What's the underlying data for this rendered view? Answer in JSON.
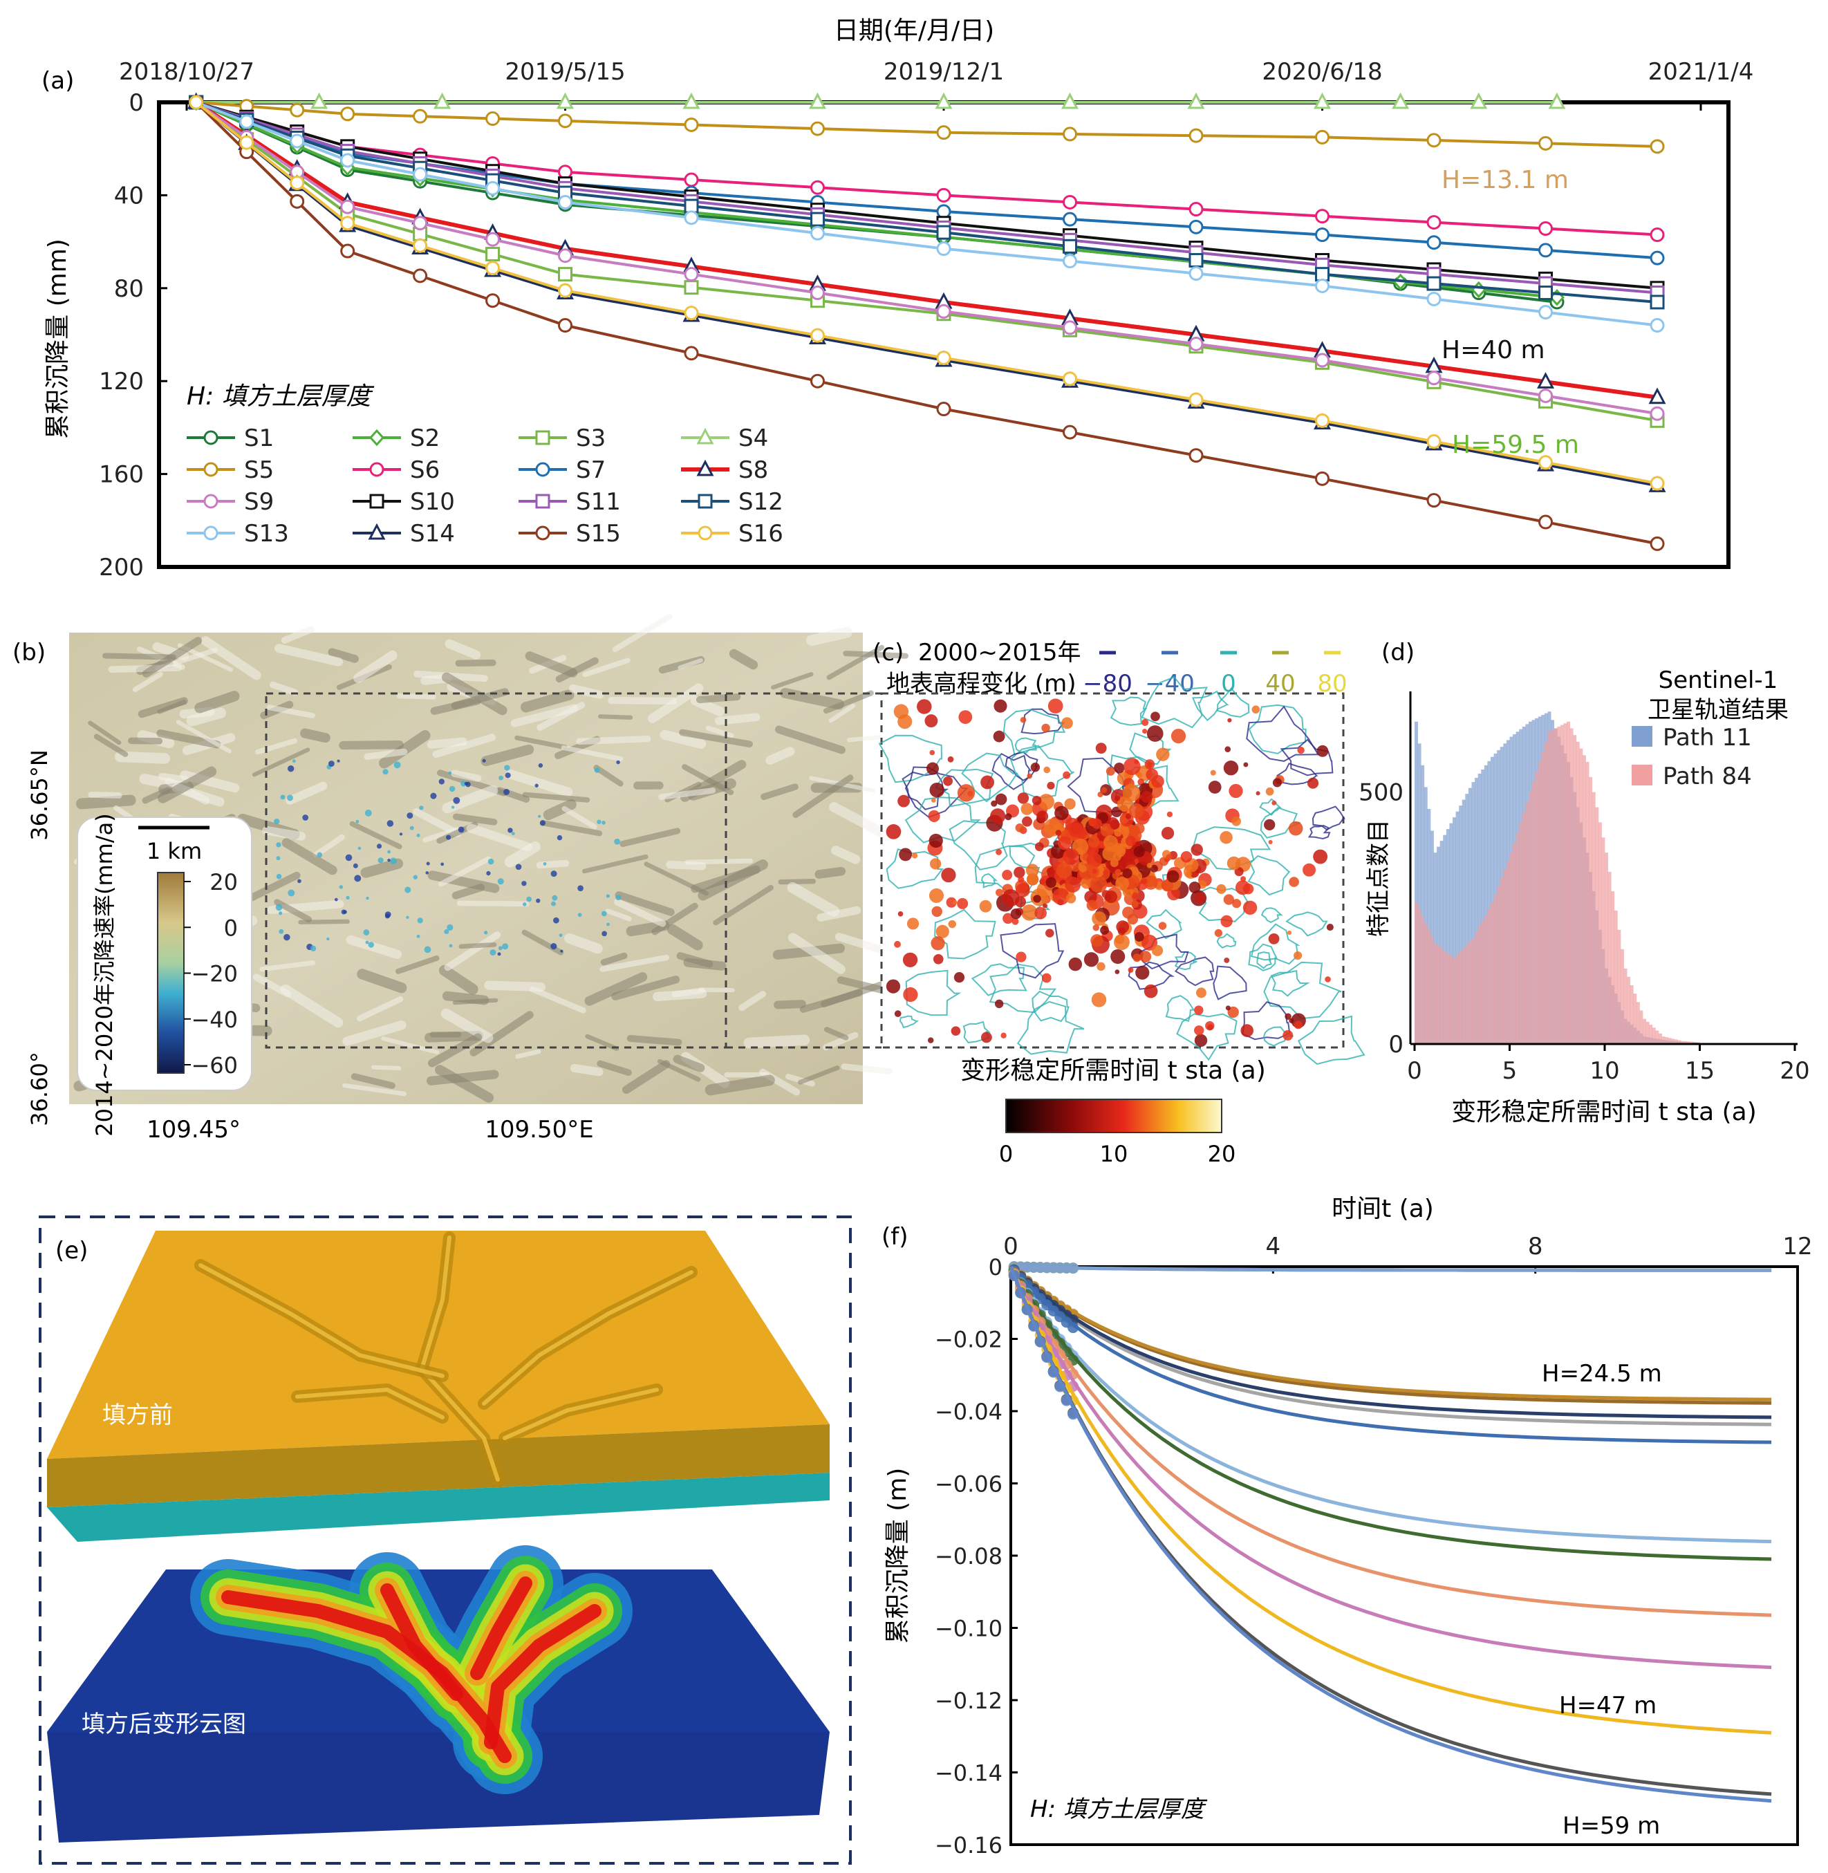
{
  "panels": {
    "a": {
      "label": "(a)",
      "x_title": "日期(年/月/日)",
      "y_title": "累积沉降量 (mm)",
      "x_ticks": [
        "2018/10/27",
        "2019/5/15",
        "2019/12/1",
        "2020/6/18",
        "2021/1/4"
      ],
      "y_ticks": [
        "0",
        "40",
        "80",
        "120",
        "160",
        "200"
      ],
      "legend_title": "H: 填方土层厚度",
      "annotations": [
        "H=13.1 m",
        "H=40 m",
        "H=59.5 m"
      ]
    },
    "b": {
      "label": "(b)",
      "scale": "1 km",
      "colorbar_title": "2014~2020年沉降速率(mm/a)",
      "colorbar_ticks": [
        "20",
        "0",
        "−20",
        "−40",
        "−60"
      ],
      "lat_ticks": [
        "36.65°N",
        "36.60°"
      ],
      "lon_ticks": [
        "109.45°",
        "109.50°E"
      ]
    },
    "c": {
      "label": "(c)",
      "legend_line1": "2000~2015年",
      "legend_line2": "地表高程变化 (m)",
      "contour_levels": [
        "−80",
        "−40",
        "0",
        "40",
        "80"
      ],
      "colorbar_title": "变形稳定所需时间 t sta (a)",
      "colorbar_ticks": [
        "0",
        "10",
        "20"
      ]
    },
    "d": {
      "label": "(d)",
      "legend_title1": "Sentinel-1",
      "legend_title2": "卫星轨道结果",
      "x_title": "变形稳定所需时间 t sta (a)",
      "y_title": "特征点数目",
      "x_ticks": [
        "0",
        "5",
        "10",
        "15",
        "20"
      ],
      "y_ticks": [
        "0",
        "500"
      ]
    },
    "e": {
      "label": "(e)",
      "text_before": "填方前",
      "text_after": "填方后变形云图"
    },
    "f": {
      "label": "(f)",
      "x_title": "时间t (a)",
      "y_title": "累积沉降量 (m)",
      "x_ticks": [
        "0",
        "4",
        "8",
        "12"
      ],
      "y_ticks": [
        "0",
        "−0.02",
        "−0.04",
        "−0.06",
        "−0.08",
        "−0.10",
        "−0.12",
        "−0.14",
        "−0.16"
      ],
      "annotations": [
        "H=24.5 m",
        "H=47 m",
        "H=59 m",
        "H: 填方土层厚度"
      ]
    }
  },
  "chart_data": [
    {
      "type": "line",
      "panel": "a",
      "x_unit": "date",
      "xlim": [
        "2018-10-27",
        "2021-01-04"
      ],
      "ylim": [
        0,
        200
      ],
      "y_inverted": true,
      "series": [
        {
          "name": "S1",
          "color": "#1f7a3a",
          "marker": "circle",
          "dates": [
            "2018-11-01",
            "2019-01-20",
            "2019-05-15",
            "2019-12-01",
            "2020-06-18",
            "2020-10-20"
          ],
          "values": [
            0,
            29,
            44,
            58,
            74,
            86
          ]
        },
        {
          "name": "S2",
          "color": "#4caf3a",
          "marker": "diamond",
          "dates": [
            "2018-11-01",
            "2019-01-20",
            "2019-05-15",
            "2019-12-01",
            "2020-06-18",
            "2020-10-20"
          ],
          "values": [
            0,
            28,
            42,
            58,
            74,
            84
          ]
        },
        {
          "name": "S3",
          "color": "#7ab648",
          "marker": "square",
          "dates": [
            "2018-11-01",
            "2019-01-20",
            "2019-05-15",
            "2019-12-01",
            "2020-06-18",
            "2020-12-12"
          ],
          "values": [
            0,
            48,
            74,
            91,
            112,
            137
          ]
        },
        {
          "name": "S4",
          "color": "#9bd07a",
          "marker": "triangle",
          "dates": [
            "2018-11-01",
            "2019-05-15",
            "2019-12-01",
            "2020-06-18",
            "2020-10-20"
          ],
          "values": [
            0,
            0,
            0,
            0,
            0
          ]
        },
        {
          "name": "S5",
          "color": "#c09018",
          "marker": "circle",
          "dates": [
            "2018-11-01",
            "2019-01-20",
            "2019-05-15",
            "2019-12-01",
            "2020-06-18",
            "2020-12-12"
          ],
          "values": [
            0,
            5,
            8,
            13,
            15,
            19
          ]
        },
        {
          "name": "S6",
          "color": "#e8207a",
          "marker": "circle",
          "dates": [
            "2018-11-01",
            "2019-01-20",
            "2019-05-15",
            "2019-12-01",
            "2020-06-18",
            "2020-12-12"
          ],
          "values": [
            0,
            19,
            30,
            40,
            49,
            57
          ]
        },
        {
          "name": "S7",
          "color": "#1f6fb0",
          "marker": "circle",
          "dates": [
            "2018-11-01",
            "2019-01-20",
            "2019-05-15",
            "2019-12-01",
            "2020-06-18",
            "2020-12-12"
          ],
          "values": [
            0,
            22,
            35,
            47,
            57,
            67
          ]
        },
        {
          "name": "S8",
          "color": "#e41a1c",
          "marker": "triangle",
          "dates": [
            "2018-11-01",
            "2019-01-20",
            "2019-05-15",
            "2019-12-01",
            "2020-06-18",
            "2020-12-12"
          ],
          "values": [
            0,
            43,
            63,
            86,
            107,
            127
          ]
        },
        {
          "name": "S9",
          "color": "#c77cc2",
          "marker": "circle",
          "dates": [
            "2018-11-01",
            "2019-01-20",
            "2019-05-15",
            "2019-12-01",
            "2020-06-18",
            "2020-12-12"
          ],
          "values": [
            0,
            45,
            66,
            90,
            111,
            134
          ]
        },
        {
          "name": "S10",
          "color": "#111111",
          "marker": "square",
          "dates": [
            "2018-11-01",
            "2019-01-20",
            "2019-05-15",
            "2019-12-01",
            "2020-06-18",
            "2020-12-12"
          ],
          "values": [
            0,
            19,
            35,
            52,
            68,
            80
          ]
        },
        {
          "name": "S11",
          "color": "#9b59b6",
          "marker": "square",
          "dates": [
            "2018-11-01",
            "2019-01-20",
            "2019-05-15",
            "2019-12-01",
            "2020-06-18",
            "2020-12-12"
          ],
          "values": [
            0,
            21,
            37,
            54,
            70,
            82
          ]
        },
        {
          "name": "S12",
          "color": "#1a4f7a",
          "marker": "square",
          "dates": [
            "2018-11-01",
            "2019-01-20",
            "2019-05-15",
            "2019-12-01",
            "2020-06-18",
            "2020-12-12"
          ],
          "values": [
            0,
            23,
            39,
            56,
            74,
            86
          ]
        },
        {
          "name": "S13",
          "color": "#8ec5ee",
          "marker": "circle",
          "dates": [
            "2018-11-01",
            "2019-01-20",
            "2019-05-15",
            "2019-12-01",
            "2020-06-18",
            "2020-12-12"
          ],
          "values": [
            0,
            25,
            43,
            63,
            79,
            96
          ]
        },
        {
          "name": "S14",
          "color": "#1c2f5f",
          "marker": "triangle",
          "dates": [
            "2018-11-01",
            "2019-01-20",
            "2019-05-15",
            "2019-12-01",
            "2020-06-18",
            "2020-12-12"
          ],
          "values": [
            0,
            53,
            82,
            111,
            138,
            165
          ]
        },
        {
          "name": "S15",
          "color": "#8e3b1f",
          "marker": "circle",
          "dates": [
            "2018-11-01",
            "2019-01-20",
            "2019-05-15",
            "2019-12-01",
            "2020-06-18",
            "2020-12-12"
          ],
          "values": [
            0,
            64,
            96,
            132,
            162,
            190
          ]
        },
        {
          "name": "S16",
          "color": "#f0c040",
          "marker": "circle",
          "dates": [
            "2018-11-01",
            "2019-01-20",
            "2019-05-15",
            "2019-12-01",
            "2020-06-18",
            "2020-12-12"
          ],
          "values": [
            0,
            52,
            81,
            110,
            137,
            164
          ]
        }
      ]
    },
    {
      "type": "bar",
      "panel": "d",
      "xlim": [
        0,
        20
      ],
      "ylim": [
        0,
        700
      ],
      "series": [
        {
          "name": "Path 11",
          "color": "#7f9fd0",
          "x": [
            0,
            1,
            2,
            3,
            4,
            5,
            6,
            7,
            8,
            9,
            10,
            11,
            12,
            13,
            14,
            15
          ],
          "values": [
            640,
            380,
            450,
            520,
            570,
            610,
            640,
            660,
            560,
            380,
            150,
            50,
            15,
            8,
            4,
            2
          ]
        },
        {
          "name": "Path 84",
          "color": "#f0a0a0",
          "x": [
            0,
            1,
            2,
            3,
            4,
            5,
            6,
            7,
            8,
            9,
            10,
            11,
            12,
            13,
            14,
            15
          ],
          "values": [
            280,
            200,
            170,
            210,
            280,
            380,
            500,
            620,
            640,
            560,
            380,
            150,
            50,
            15,
            6,
            3
          ]
        }
      ]
    },
    {
      "type": "line",
      "panel": "f",
      "xlim": [
        0,
        12
      ],
      "ylim": [
        -0.16,
        0
      ],
      "series": [
        {
          "color": "#5fa040",
          "final": -0.001
        },
        {
          "color": "#7f9fd0",
          "final": -0.001
        },
        {
          "color": "#9a6a2a",
          "final": -0.038
        },
        {
          "color": "#a5a5a5",
          "final": -0.044
        },
        {
          "color": "#c08a2a",
          "final": -0.037
        },
        {
          "color": "#2a3f6a",
          "final": -0.042
        },
        {
          "color": "#3f6fb0",
          "final": -0.049
        },
        {
          "color": "#8ab4dc",
          "final": -0.077
        },
        {
          "color": "#3f6a30",
          "final": -0.082
        },
        {
          "color": "#e8926a",
          "final": -0.098
        },
        {
          "color": "#c77cb8",
          "final": -0.113
        },
        {
          "color": "#f0b820",
          "final": -0.132
        },
        {
          "color": "#555555",
          "final": -0.15
        },
        {
          "color": "#5f86c8",
          "final": -0.152
        }
      ]
    }
  ]
}
